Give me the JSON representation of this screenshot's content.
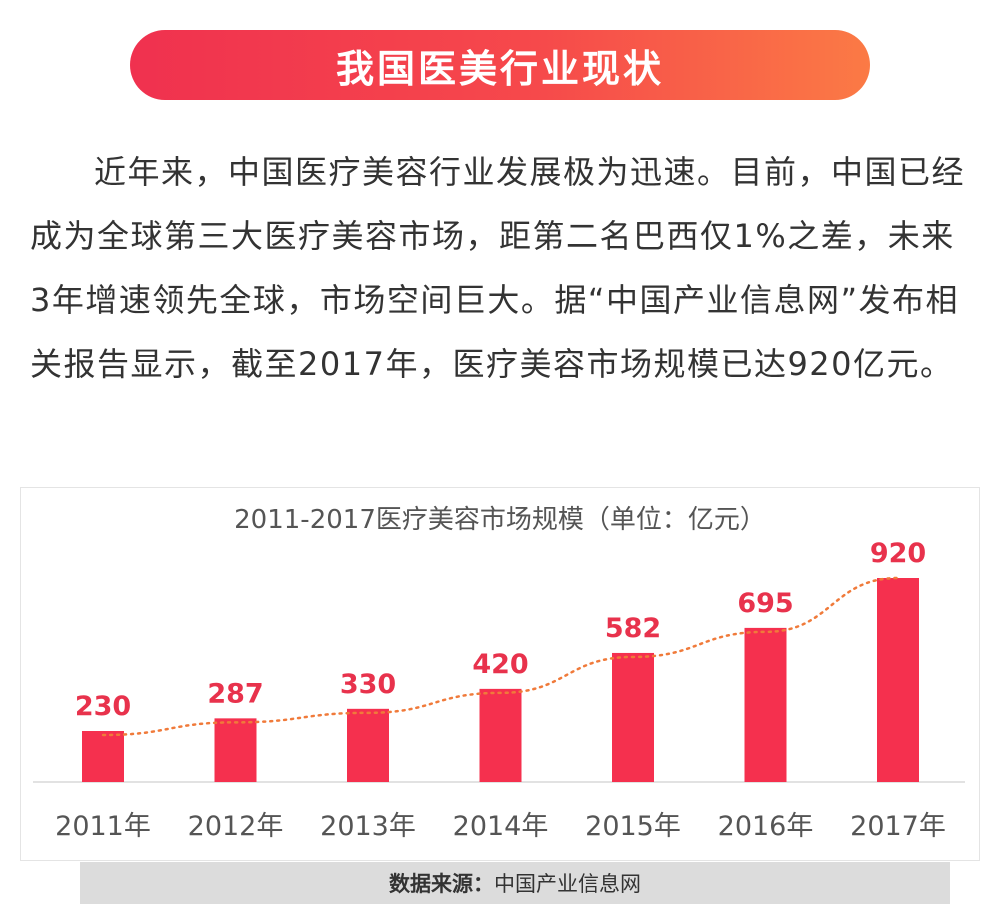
{
  "header": {
    "title": "我国医美行业现状"
  },
  "intro": {
    "text": "近年来，中国医疗美容行业发展极为迅速。目前，中国已经成为全球第三大医疗美容市场，距第二名巴西仅1%之差，未来3年增速领先全球，市场空间巨大。据“中国产业信息网”发布相关报告显示，截至2017年，医疗美容市场规模已达920亿元。"
  },
  "chart_data": {
    "type": "bar",
    "title": "2011-2017医疗美容市场规模（单位：亿元）",
    "categories": [
      "2011年",
      "2012年",
      "2013年",
      "2014年",
      "2015年",
      "2016年",
      "2017年"
    ],
    "values": [
      230,
      287,
      330,
      420,
      582,
      695,
      920
    ],
    "xlabel": "",
    "ylabel": "",
    "ylim": [
      0,
      920
    ],
    "trendline": "dotted",
    "colors": {
      "bar": "#f5304e",
      "label": "#e8324c",
      "trend": "#f07a3a"
    }
  },
  "source": {
    "label": "数据来源：",
    "value": "中国产业信息网"
  }
}
